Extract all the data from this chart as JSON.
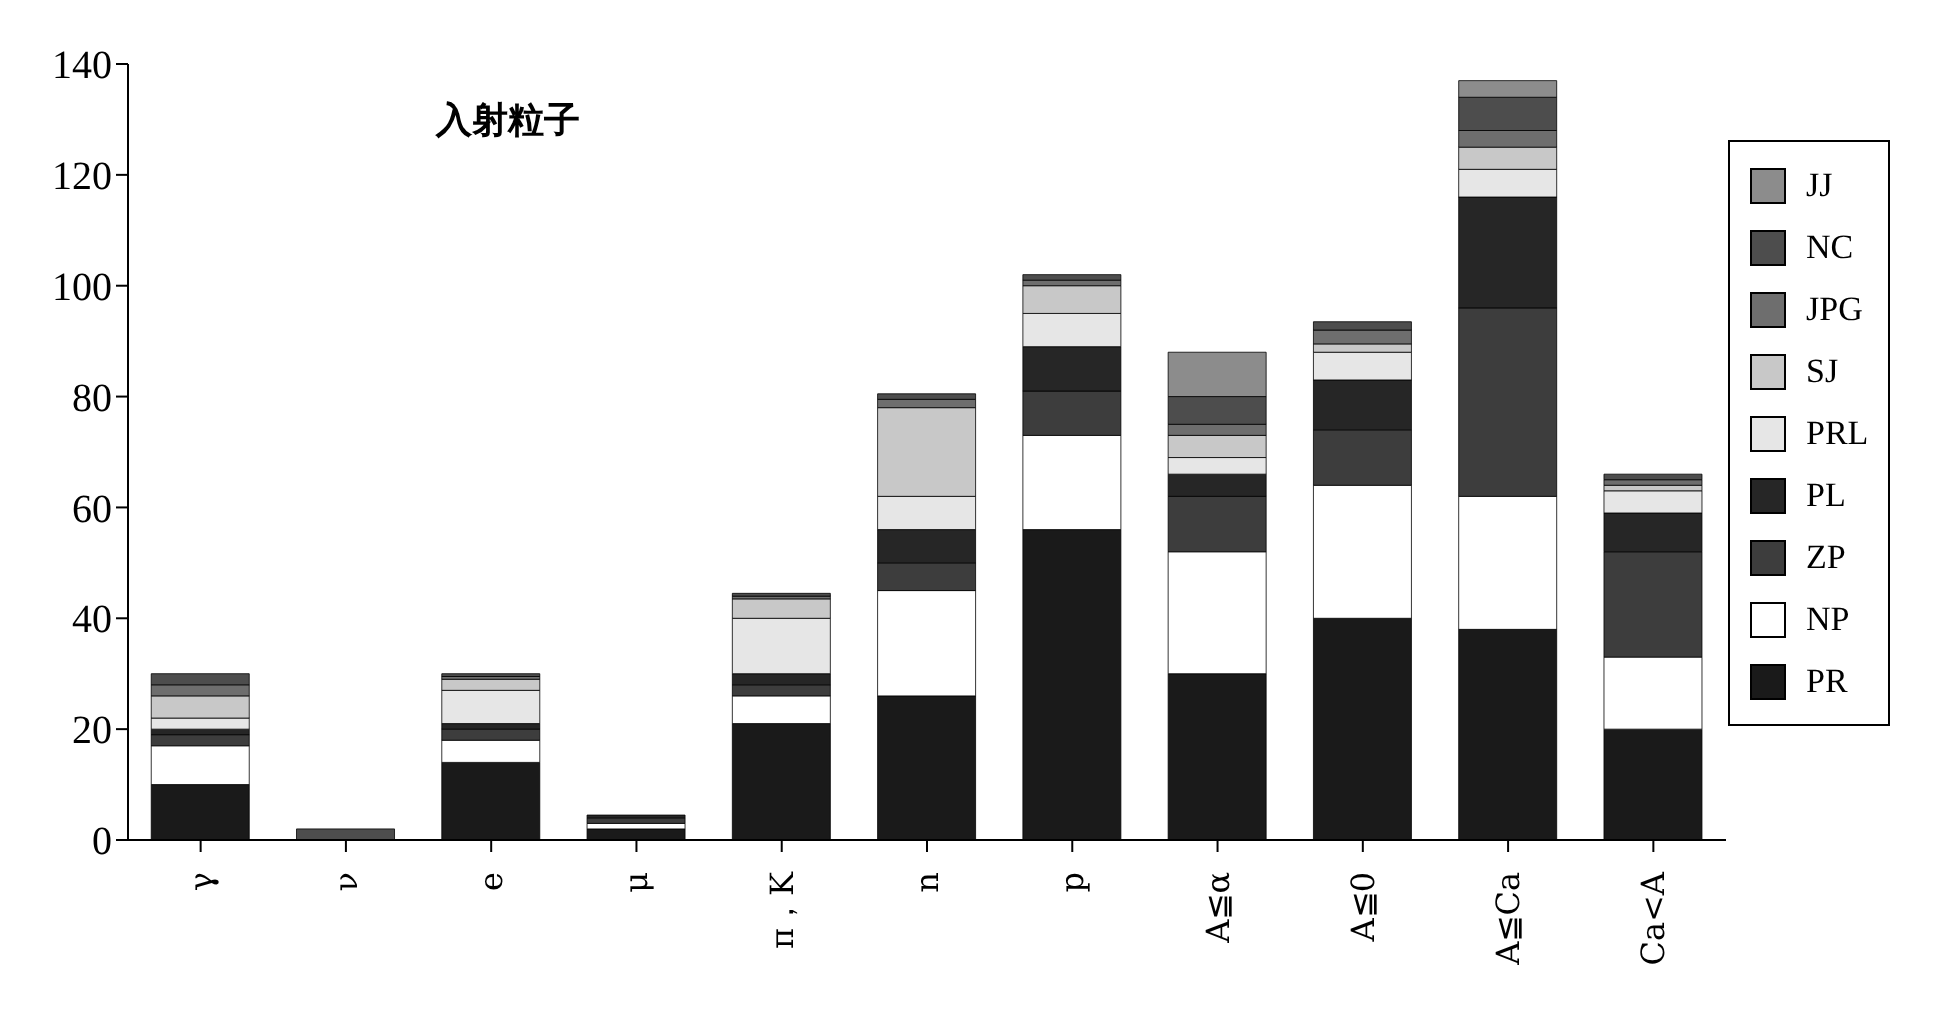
{
  "chart_data": {
    "type": "bar",
    "title": "入射粒子",
    "stacked": true,
    "categories": [
      "γ",
      "ν",
      "e",
      "μ",
      "π，K",
      "n",
      "p",
      "A≦α",
      "A≦0",
      "A≦Ca",
      "Ca<A"
    ],
    "series": [
      {
        "name": "PR",
        "color": "#1a1a1a",
        "values": [
          10,
          0,
          14,
          2,
          21,
          26,
          56,
          30,
          40,
          38,
          20
        ]
      },
      {
        "name": "NP",
        "color": "#ffffff",
        "values": [
          7,
          0,
          4,
          1,
          5,
          19,
          17,
          22,
          24,
          24,
          13
        ]
      },
      {
        "name": "ZP",
        "color": "#3d3d3d",
        "values": [
          2,
          0,
          2,
          1,
          2,
          5,
          8,
          10,
          10,
          34,
          19
        ]
      },
      {
        "name": "PL",
        "color": "#262626",
        "values": [
          1,
          0,
          1,
          0.5,
          2,
          6,
          8,
          4,
          9,
          20,
          7
        ]
      },
      {
        "name": "PRL",
        "color": "#e6e6e6",
        "values": [
          2,
          0,
          6,
          0,
          10,
          6,
          6,
          3,
          5,
          5,
          4
        ]
      },
      {
        "name": "SJ",
        "color": "#c8c8c8",
        "values": [
          4,
          0,
          2,
          0,
          3.5,
          16,
          5,
          4,
          1.5,
          4,
          1
        ]
      },
      {
        "name": "JPG",
        "color": "#6e6e6e",
        "values": [
          2,
          0,
          0.5,
          0,
          0.5,
          1.5,
          1,
          2,
          2.5,
          3,
          1
        ]
      },
      {
        "name": "NC",
        "color": "#4d4d4d",
        "values": [
          2,
          2,
          0.5,
          0,
          0.5,
          1,
          1,
          5,
          1.5,
          6,
          1
        ]
      },
      {
        "name": "JJ",
        "color": "#8c8c8c",
        "values": [
          0,
          0,
          0,
          0,
          0,
          0,
          0,
          8,
          0,
          3,
          0
        ]
      }
    ],
    "ylim": [
      0,
      140
    ],
    "yticks": [
      0,
      20,
      40,
      60,
      80,
      100,
      120,
      140
    ],
    "legend": "right"
  }
}
